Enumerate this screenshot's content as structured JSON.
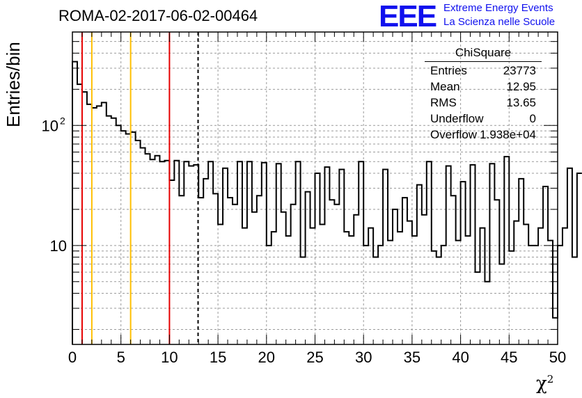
{
  "title": "ROMA-02-2017-06-02-00464",
  "logo": {
    "mark": "EEE",
    "line1": "Extreme Energy Events",
    "line2": "La Scienza nelle Scuole",
    "color": "#1010ee"
  },
  "stats": {
    "name": "ChiSquare",
    "rows": [
      {
        "key": "Entries",
        "value": "23773"
      },
      {
        "key": "Mean",
        "value": "12.95"
      },
      {
        "key": "RMS",
        "value": "13.65"
      },
      {
        "key": "Underflow",
        "value": "0"
      },
      {
        "key": "Overflow",
        "value": "1.938e+04"
      }
    ]
  },
  "chart_data": {
    "type": "histogram",
    "ylabel": "Entries/bin",
    "xlabel": "χ",
    "xlabel_sup": "2",
    "xlim": [
      0,
      50
    ],
    "ylim": [
      1.5,
      600
    ],
    "yscale": "log",
    "bin_width": 0.5,
    "x_ticks": [
      "0",
      "5",
      "10",
      "15",
      "20",
      "25",
      "30",
      "35",
      "40",
      "45",
      "50"
    ],
    "y_tick_labels": [
      {
        "value": 10,
        "label": "10"
      },
      {
        "value": 100,
        "label": "10",
        "sup": "2"
      }
    ],
    "grid": true,
    "values": [
      340,
      220,
      190,
      150,
      140,
      145,
      155,
      120,
      115,
      100,
      90,
      85,
      88,
      75,
      65,
      58,
      52,
      56,
      50,
      51,
      35,
      51,
      26,
      50,
      46,
      47,
      25,
      36,
      50,
      27,
      15,
      44,
      25,
      22,
      50,
      14,
      50,
      19,
      26,
      49,
      10,
      13,
      48,
      19,
      12,
      22,
      50,
      8,
      28,
      14,
      40,
      15,
      45,
      24,
      22,
      43,
      13,
      12,
      18,
      50,
      10,
      14,
      8,
      10,
      43,
      11,
      20,
      13,
      25,
      16,
      12,
      32,
      18,
      50,
      9,
      8,
      10,
      46,
      26,
      11,
      34,
      12,
      47,
      6,
      14,
      5,
      48,
      24,
      7,
      55,
      9,
      16,
      36,
      15,
      10,
      10,
      14,
      31,
      11,
      2.5,
      10,
      14,
      44,
      8,
      40
    ],
    "vertical_lines": [
      {
        "x": 1,
        "color": "#e60000",
        "style": "solid"
      },
      {
        "x": 2,
        "color": "#ffbf00",
        "style": "solid"
      },
      {
        "x": 6,
        "color": "#ffbf00",
        "style": "solid"
      },
      {
        "x": 10,
        "color": "#e60000",
        "style": "solid"
      },
      {
        "x": 12.95,
        "color": "#000000",
        "style": "dashed"
      }
    ]
  }
}
